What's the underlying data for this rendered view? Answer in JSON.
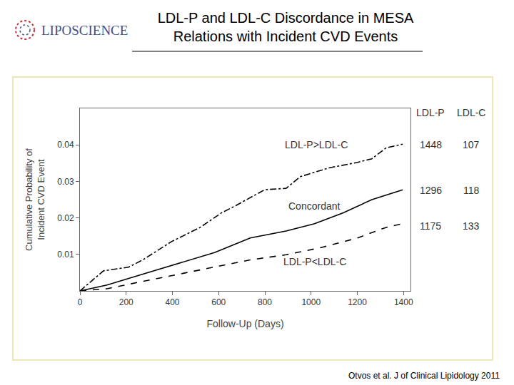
{
  "chart_data": {
    "type": "line",
    "title": [
      "LDL-P and LDL-C Discordance in MESA",
      "Relations with Incident CVD Events"
    ],
    "logo": "LIPOSCIENCE",
    "x_label": "Follow-Up (Days)",
    "y_label": [
      "Cumulative Probability of",
      "Incident CVD Event"
    ],
    "xlim": [
      0,
      1430
    ],
    "xticks": [
      0,
      200,
      400,
      600,
      800,
      1000,
      1200,
      1400
    ],
    "ylim": [
      0,
      0.05
    ],
    "yticks": [
      0.01,
      0.02,
      0.03,
      0.04
    ],
    "grid": false,
    "series": [
      {
        "name": "LDL-P>LDL-C",
        "color": "#000000",
        "line_style": "dashdot",
        "x": [
          0,
          102,
          210,
          272,
          396,
          520,
          613,
          675,
          799,
          892,
          954,
          1077,
          1201,
          1263,
          1325,
          1396
        ],
        "values": [
          0,
          0.0055,
          0.0065,
          0.0085,
          0.0135,
          0.0174,
          0.0214,
          0.0234,
          0.0277,
          0.0281,
          0.0313,
          0.0337,
          0.0352,
          0.0362,
          0.0392,
          0.0402
        ]
      },
      {
        "name": "Concordant",
        "color": "#000000",
        "line_style": "solid",
        "x": [
          0,
          117,
          272,
          427,
          582,
          737,
          892,
          1015,
          1139,
          1263,
          1396
        ],
        "values": [
          0,
          0.0016,
          0.0046,
          0.0075,
          0.0105,
          0.0145,
          0.0164,
          0.0184,
          0.0214,
          0.025,
          0.0277
        ]
      },
      {
        "name": "LDL-P<LDL-C",
        "color": "#000000",
        "line_style": "dash",
        "x": [
          0,
          117,
          272,
          427,
          582,
          737,
          892,
          1046,
          1201,
          1325,
          1396
        ],
        "values": [
          0,
          0.0006,
          0.0026,
          0.0046,
          0.0065,
          0.0085,
          0.0099,
          0.0119,
          0.0145,
          0.0174,
          0.0184
        ]
      }
    ],
    "table": {
      "columns": [
        "LDL-P",
        "LDL-C"
      ],
      "rows": [
        [
          1448,
          107
        ],
        [
          1296,
          118
        ],
        [
          1175,
          133
        ]
      ]
    },
    "source": "Otvos et al. J of Clinical Lipidology 2011"
  }
}
